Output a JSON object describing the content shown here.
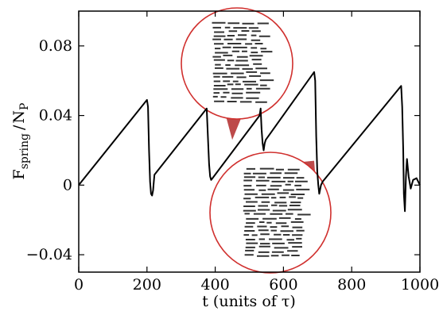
{
  "chart_data": {
    "type": "line",
    "xlabel": "t  (units of τ)",
    "ylabel": "F_spring / N_P",
    "ylabel_parts": {
      "main": "F",
      "sub1": "spring",
      "sep": "/",
      "main2": "N",
      "sub2": "P"
    },
    "xlim": [
      0,
      1000
    ],
    "ylim": [
      -0.05,
      0.1
    ],
    "x_ticks": [
      0,
      200,
      400,
      600,
      800,
      1000
    ],
    "x_tick_labels": [
      "0",
      "200",
      "400",
      "600",
      "800",
      "1000"
    ],
    "y_ticks": [
      -0.04,
      0,
      0.04,
      0.08
    ],
    "y_tick_labels": [
      "−0.04",
      "0",
      "0.04",
      "0.08"
    ],
    "grid": false,
    "legend": "none",
    "series": [
      {
        "color": "#000000",
        "x": [
          0,
          200,
          203,
          206,
          209,
          212,
          215,
          218,
          220,
          222,
          375,
          378,
          382,
          385,
          388,
          392,
          530,
          533,
          536,
          539,
          542,
          545,
          548,
          690,
          693,
          696,
          699,
          702,
          705,
          710,
          715,
          945,
          948,
          951,
          953,
          956,
          959,
          962,
          967,
          973,
          980,
          990,
          1000
        ],
        "y": [
          0,
          0.049,
          0.045,
          0.02,
          0.002,
          -0.005,
          -0.006,
          -0.003,
          0.002,
          0.006,
          0.044,
          0.03,
          0.012,
          0.005,
          0.003,
          0.004,
          0.04,
          0.044,
          0.032,
          0.024,
          0.02,
          0.024,
          0.026,
          0.065,
          0.06,
          0.028,
          0.008,
          0.0,
          -0.005,
          0.0,
          0.002,
          0.057,
          0.045,
          0.02,
          -0.005,
          -0.015,
          0.005,
          0.015,
          0.005,
          -0.002,
          0.003,
          0.004,
          0.0
        ]
      }
    ],
    "insets": [
      {
        "position": "top-center",
        "stroke": "#d0302e",
        "pointer_target": {
          "x": 450,
          "y": 0.026
        }
      },
      {
        "position": "bottom-center",
        "stroke": "#d0302e",
        "pointer_target": {
          "x": 690,
          "y": 0.014
        }
      }
    ]
  }
}
